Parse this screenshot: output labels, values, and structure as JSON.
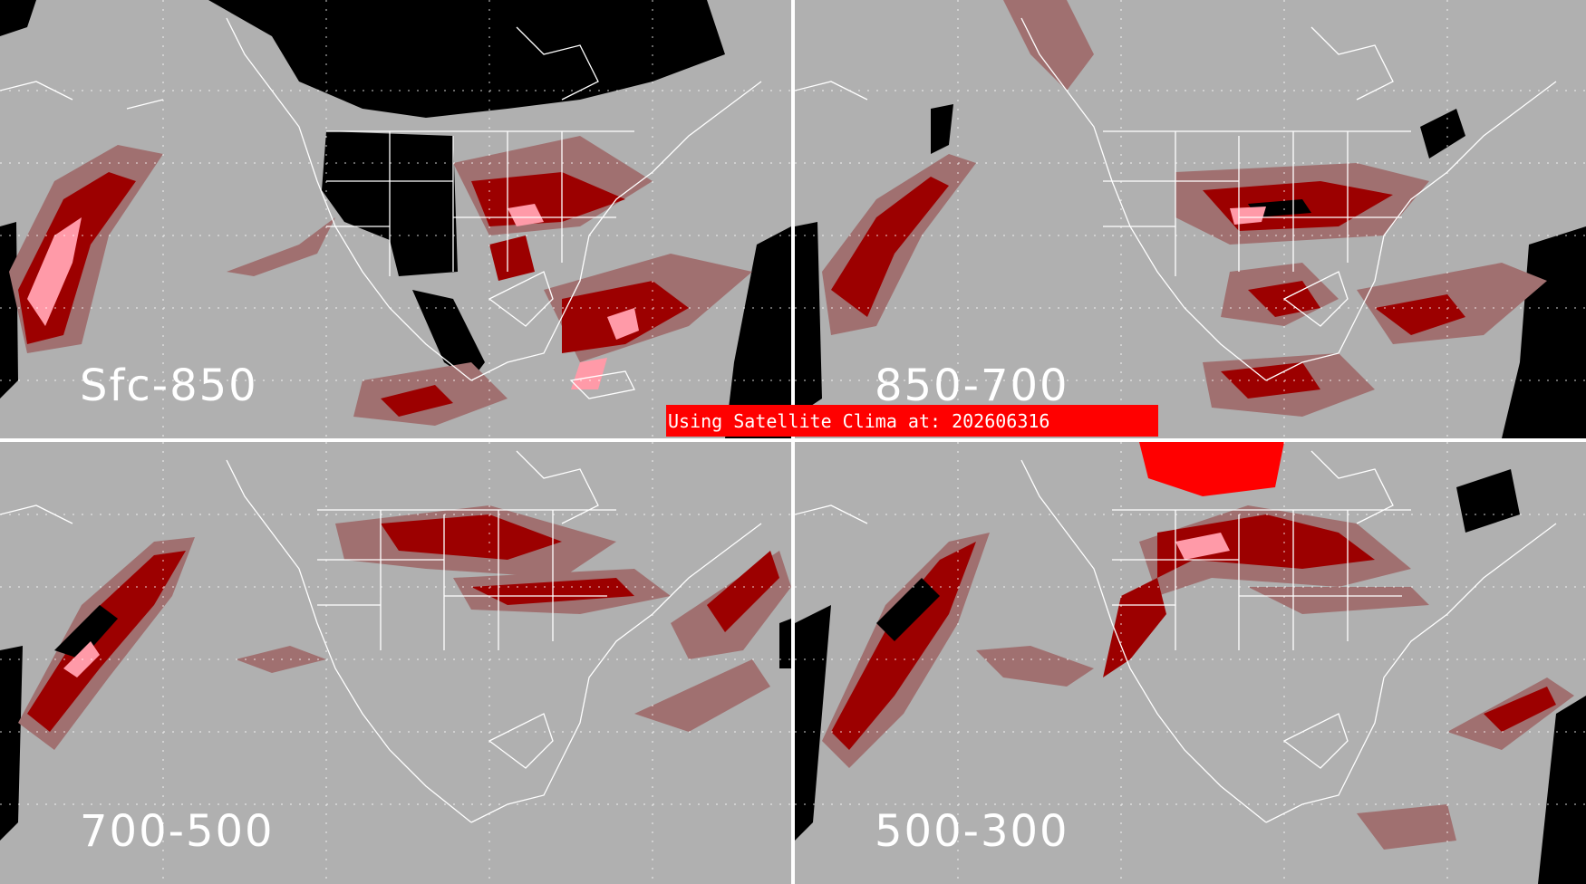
{
  "banner": {
    "text": "Using Satellite Clima at: 202606316"
  },
  "panels": [
    {
      "label": "Sfc-850"
    },
    {
      "label": "850-700"
    },
    {
      "label": "700-500"
    },
    {
      "label": "500-300"
    }
  ],
  "colors": {
    "background_gray": "#b0b0b0",
    "land_black": "#000000",
    "category_light": "#a07070",
    "category_medium": "#9c0000",
    "category_high": "#ff9aa8",
    "category_extreme": "#ff0000",
    "coastline_white": "#ffffff"
  }
}
